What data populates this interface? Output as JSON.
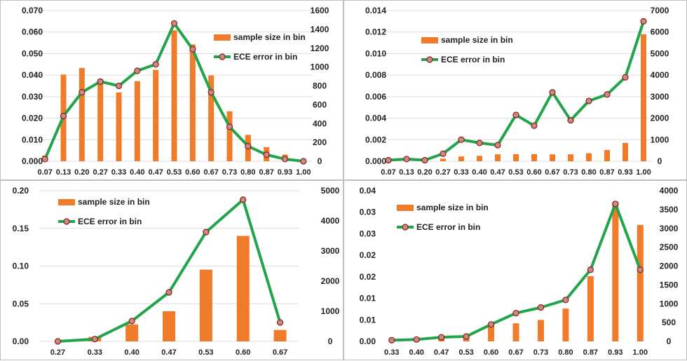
{
  "colors": {
    "bar": "#f07b2a",
    "line": "#22a44a",
    "marker_fill": "#c98a86",
    "marker_edge": "#8a1e16"
  },
  "chart_data": [
    {
      "type": "bar+line",
      "legend_position": "top-right",
      "categories": [
        "0.07",
        "0.13",
        "0.20",
        "0.27",
        "0.33",
        "0.40",
        "0.47",
        "0.53",
        "0.60",
        "0.67",
        "0.73",
        "0.80",
        "0.87",
        "0.93",
        "1.00"
      ],
      "series": [
        {
          "name": "sample size in bin",
          "type": "bar",
          "axis": "right",
          "values": [
            60,
            920,
            990,
            870,
            730,
            850,
            970,
            1390,
            1240,
            910,
            530,
            280,
            150,
            70,
            10
          ]
        },
        {
          "name": "ECE error in bin",
          "type": "line",
          "axis": "left",
          "values": [
            0.001,
            0.021,
            0.032,
            0.037,
            0.035,
            0.042,
            0.045,
            0.064,
            0.052,
            0.032,
            0.016,
            0.007,
            0.003,
            0.001,
            0.0
          ]
        }
      ],
      "left_ticks": [
        "0.000",
        "0.010",
        "0.020",
        "0.030",
        "0.040",
        "0.050",
        "0.060",
        "0.070"
      ],
      "right_ticks": [
        "0",
        "200",
        "400",
        "600",
        "800",
        "1000",
        "1200",
        "1400",
        "1600"
      ],
      "left_ylim": [
        0,
        0.07
      ],
      "right_ylim": [
        0,
        1600
      ],
      "grid": true
    },
    {
      "type": "bar+line",
      "legend_position": "top-center",
      "categories": [
        "0.07",
        "0.13",
        "0.20",
        "0.27",
        "0.33",
        "0.40",
        "0.47",
        "0.53",
        "0.60",
        "0.67",
        "0.73",
        "0.80",
        "0.87",
        "0.93",
        "1.00"
      ],
      "series": [
        {
          "name": "sample size in bin",
          "type": "bar",
          "axis": "right",
          "values": [
            0,
            0,
            30,
            120,
            220,
            250,
            320,
            330,
            330,
            320,
            320,
            370,
            520,
            850,
            5900
          ]
        },
        {
          "name": "ECE error in bin",
          "type": "line",
          "axis": "left",
          "values": [
            0.0001,
            0.0002,
            0.0001,
            0.0007,
            0.002,
            0.0017,
            0.0015,
            0.0043,
            0.0033,
            0.0064,
            0.0038,
            0.0056,
            0.0062,
            0.0078,
            0.013
          ]
        }
      ],
      "left_ticks": [
        "0.000",
        "0.002",
        "0.004",
        "0.006",
        "0.008",
        "0.010",
        "0.012",
        "0.014"
      ],
      "right_ticks": [
        "0",
        "1000",
        "2000",
        "3000",
        "4000",
        "5000",
        "6000",
        "7000"
      ],
      "left_ylim": [
        0,
        0.014
      ],
      "right_ylim": [
        0,
        7000
      ],
      "grid": true
    },
    {
      "type": "bar+line",
      "legend_position": "top-left",
      "categories": [
        "0.27",
        "0.33",
        "0.40",
        "0.47",
        "0.53",
        "0.60",
        "0.67"
      ],
      "series": [
        {
          "name": "sample size in bin",
          "type": "bar",
          "axis": "right",
          "values": [
            0,
            150,
            560,
            1000,
            2380,
            3500,
            380
          ]
        },
        {
          "name": "ECE error in bin",
          "type": "line",
          "axis": "left",
          "values": [
            0.0,
            0.003,
            0.027,
            0.065,
            0.145,
            0.188,
            0.025
          ]
        }
      ],
      "left_ticks": [
        "0.00",
        "0.05",
        "0.10",
        "0.15",
        "0.20"
      ],
      "right_ticks": [
        "0",
        "1000",
        "2000",
        "3000",
        "4000",
        "5000"
      ],
      "left_ylim": [
        0,
        0.2
      ],
      "right_ylim": [
        0,
        5000
      ],
      "grid": true
    },
    {
      "type": "bar+line",
      "legend_position": "top-center",
      "categories": [
        "0.33",
        "0.40",
        "0.47",
        "0.53",
        "0.60",
        "0.67",
        "0.73",
        "0.80",
        "0.87",
        "0.93",
        "1.00"
      ],
      "series": [
        {
          "name": "sample size in bin",
          "type": "bar",
          "axis": "right",
          "values": [
            0,
            10,
            80,
            150,
            430,
            480,
            570,
            870,
            1730,
            3700,
            3090
          ]
        },
        {
          "name": "ECE error in bin",
          "type": "line",
          "axis": "left",
          "values": [
            0.0003,
            0.0005,
            0.0011,
            0.0013,
            0.0045,
            0.0075,
            0.009,
            0.011,
            0.019,
            0.0365,
            0.019
          ]
        }
      ],
      "left_ticks": [
        "0.00",
        "0.01",
        "0.01",
        "0.02",
        "0.02",
        "0.03",
        "0.03",
        "0.04"
      ],
      "right_ticks": [
        "0",
        "500",
        "1000",
        "1500",
        "2000",
        "2500",
        "3000",
        "3500",
        "4000"
      ],
      "left_ylim": [
        0,
        0.04
      ],
      "right_ylim": [
        0,
        4000
      ],
      "grid": false
    }
  ]
}
